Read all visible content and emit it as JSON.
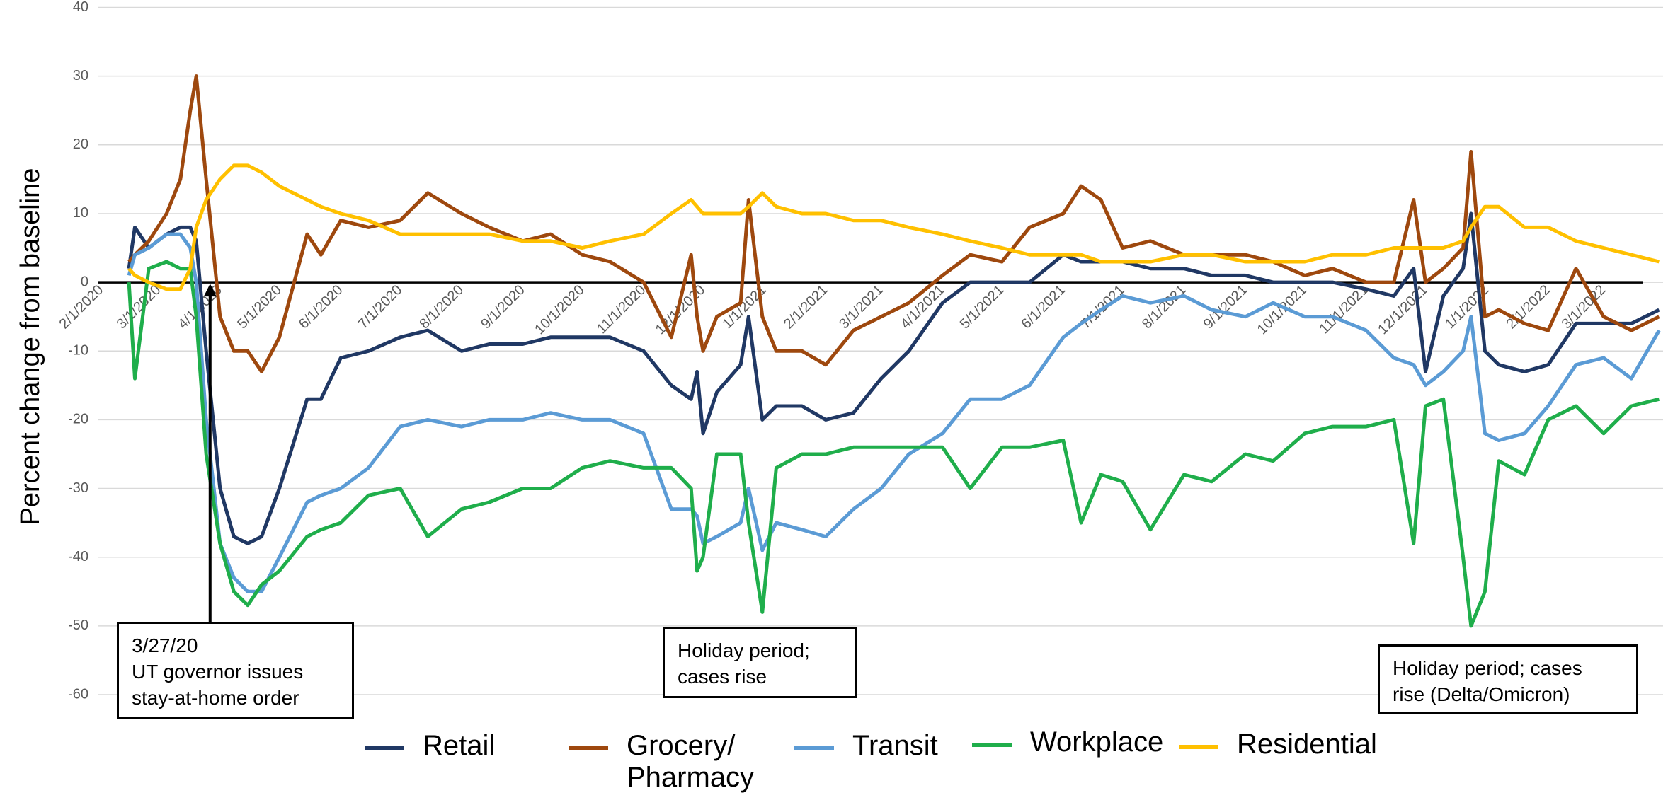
{
  "chart_data": {
    "type": "line",
    "ylabel": "Percent change from baseline",
    "x": [
      "2/15/2020",
      "2/18/2020",
      "2/25/2020",
      "3/5/2020",
      "3/12/2020",
      "3/17/2020",
      "3/20/2020",
      "3/25/2020",
      "4/1/2020",
      "4/8/2020",
      "4/15/2020",
      "4/22/2020",
      "5/1/2020",
      "5/15/2020",
      "5/22/2020",
      "6/1/2020",
      "6/15/2020",
      "7/1/2020",
      "7/15/2020",
      "8/1/2020",
      "8/15/2020",
      "9/1/2020",
      "9/15/2020",
      "10/1/2020",
      "10/15/2020",
      "11/1/2020",
      "11/15/2020",
      "11/25/2020",
      "11/28/2020",
      "12/1/2020",
      "12/8/2020",
      "12/20/2020",
      "12/24/2020",
      "12/31/2020",
      "1/7/2021",
      "1/20/2021",
      "2/1/2021",
      "2/15/2021",
      "3/1/2021",
      "3/15/2021",
      "4/1/2021",
      "4/15/2021",
      "5/1/2021",
      "5/15/2021",
      "6/1/2021",
      "6/10/2021",
      "6/20/2021",
      "7/1/2021",
      "7/15/2021",
      "8/1/2021",
      "8/15/2021",
      "9/1/2021",
      "9/15/2021",
      "10/1/2021",
      "10/15/2021",
      "11/1/2021",
      "11/15/2021",
      "11/25/2021",
      "12/1/2021",
      "12/10/2021",
      "12/20/2021",
      "12/24/2021",
      "12/31/2021",
      "1/7/2022",
      "1/20/2022",
      "2/1/2022",
      "2/15/2022",
      "3/1/2022",
      "3/15/2022",
      "3/29/2022"
    ],
    "series": [
      {
        "name": "Retail",
        "color": "#203864",
        "values": [
          2,
          8,
          5,
          7,
          8,
          8,
          6,
          -10,
          -30,
          -37,
          -38,
          -37,
          -30,
          -17,
          -17,
          -11,
          -10,
          -8,
          -7,
          -10,
          -9,
          -9,
          -8,
          -8,
          -8,
          -10,
          -15,
          -17,
          -13,
          -22,
          -16,
          -12,
          -5,
          -20,
          -18,
          -18,
          -20,
          -19,
          -14,
          -10,
          -3,
          0,
          0,
          0,
          4,
          3,
          3,
          3,
          2,
          2,
          1,
          1,
          0,
          0,
          0,
          -1,
          -2,
          2,
          -13,
          -2,
          2,
          10,
          -10,
          -12,
          -13,
          -12,
          -6,
          -6,
          -6,
          -4
        ]
      },
      {
        "name": "Grocery/ Pharmacy",
        "color": "#9e480e",
        "values": [
          3,
          4,
          6,
          10,
          15,
          25,
          30,
          15,
          -5,
          -10,
          -10,
          -13,
          -8,
          7,
          4,
          9,
          8,
          9,
          13,
          10,
          8,
          6,
          7,
          4,
          3,
          0,
          -8,
          4,
          -5,
          -10,
          -5,
          -3,
          12,
          -5,
          -10,
          -10,
          -12,
          -7,
          -5,
          -3,
          1,
          4,
          3,
          8,
          10,
          14,
          12,
          5,
          6,
          4,
          4,
          4,
          3,
          1,
          2,
          0,
          0,
          12,
          0,
          2,
          5,
          19,
          -5,
          -4,
          -6,
          -7,
          2,
          -5,
          -7,
          -5
        ]
      },
      {
        "name": "Transit",
        "color": "#5b9bd5",
        "values": [
          1,
          4,
          5,
          7,
          7,
          5,
          0,
          -20,
          -38,
          -43,
          -45,
          -45,
          -40,
          -32,
          -31,
          -30,
          -27,
          -21,
          -20,
          -21,
          -20,
          -20,
          -19,
          -20,
          -20,
          -22,
          -33,
          -33,
          -34,
          -38,
          -37,
          -35,
          -30,
          -39,
          -35,
          -36,
          -37,
          -33,
          -30,
          -25,
          -22,
          -17,
          -17,
          -15,
          -8,
          -6,
          -4,
          -2,
          -3,
          -2,
          -4,
          -5,
          -3,
          -5,
          -5,
          -7,
          -11,
          -12,
          -15,
          -13,
          -10,
          -5,
          -22,
          -23,
          -22,
          -18,
          -12,
          -11,
          -14,
          -7
        ]
      },
      {
        "name": "Workplace",
        "color": "#1fae4b",
        "values": [
          0,
          -14,
          2,
          3,
          2,
          2,
          -5,
          -25,
          -38,
          -45,
          -47,
          -44,
          -42,
          -37,
          -36,
          -35,
          -31,
          -30,
          -37,
          -33,
          -32,
          -30,
          -30,
          -27,
          -26,
          -27,
          -27,
          -30,
          -42,
          -40,
          -25,
          -25,
          -35,
          -48,
          -27,
          -25,
          -25,
          -24,
          -24,
          -24,
          -24,
          -30,
          -24,
          -24,
          -23,
          -35,
          -28,
          -29,
          -36,
          -28,
          -29,
          -25,
          -26,
          -22,
          -21,
          -21,
          -20,
          -38,
          -18,
          -17,
          -40,
          -50,
          -45,
          -26,
          -28,
          -20,
          -18,
          -22,
          -18,
          -17
        ]
      },
      {
        "name": "Residential",
        "color": "#ffc000",
        "values": [
          2,
          1,
          0,
          -1,
          -1,
          2,
          8,
          12,
          15,
          17,
          17,
          16,
          14,
          12,
          11,
          10,
          9,
          7,
          7,
          7,
          7,
          6,
          6,
          5,
          6,
          7,
          10,
          12,
          11,
          10,
          10,
          10,
          11,
          13,
          11,
          10,
          10,
          9,
          9,
          8,
          7,
          6,
          5,
          4,
          4,
          4,
          3,
          3,
          3,
          4,
          4,
          3,
          3,
          3,
          4,
          4,
          5,
          5,
          5,
          5,
          6,
          8,
          11,
          11,
          8,
          8,
          6,
          5,
          4,
          3
        ]
      }
    ],
    "xlim": [
      "2/1/2020",
      "3/31/2022"
    ],
    "xticks": [
      "2/1/2020",
      "3/1/2020",
      "4/1/2020",
      "5/1/2020",
      "6/1/2020",
      "7/1/2020",
      "8/1/2020",
      "9/1/2020",
      "10/1/2020",
      "11/1/2020",
      "12/1/2020",
      "1/1/2021",
      "2/1/2021",
      "3/1/2021",
      "4/1/2021",
      "5/1/2021",
      "6/1/2021",
      "7/1/2021",
      "8/1/2021",
      "9/1/2021",
      "10/1/2021",
      "11/1/2021",
      "12/1/2021",
      "1/1/2022",
      "2/1/2022",
      "3/1/2022"
    ],
    "ylim": [
      -60,
      40
    ],
    "yticks": [
      -60,
      -50,
      -40,
      -30,
      -20,
      -10,
      0,
      10,
      20,
      30,
      40
    ],
    "grid": true,
    "annotations": [
      {
        "lines": [
          "3/27/20",
          "UT governor issues",
          "stay-at-home order"
        ],
        "x": "3/27/2020"
      },
      {
        "lines": [
          "Holiday period;",
          "cases rise"
        ]
      },
      {
        "lines": [
          "Holiday period; cases",
          "rise (Delta/Omicron)"
        ]
      }
    ]
  }
}
